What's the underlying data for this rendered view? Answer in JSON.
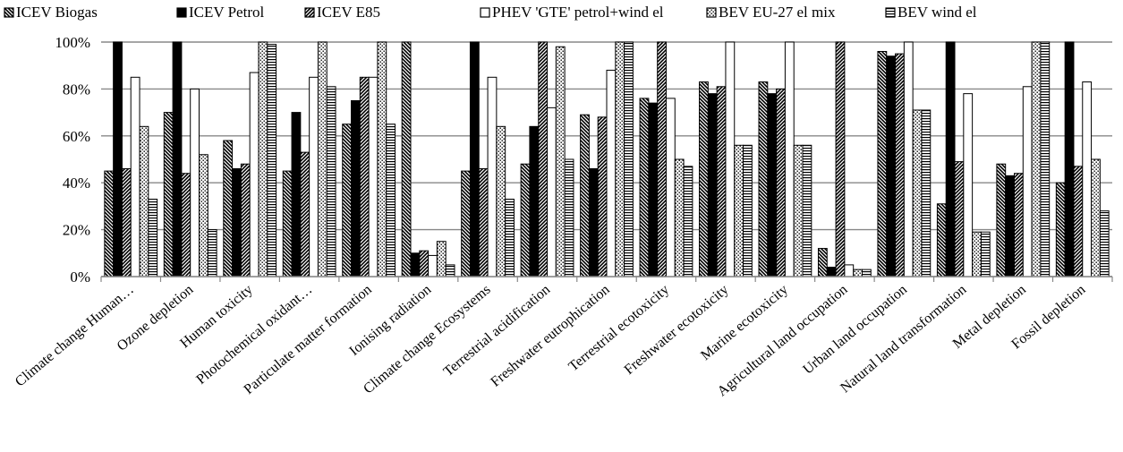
{
  "chart_data": {
    "type": "bar",
    "title": "",
    "xlabel": "",
    "ylabel": "",
    "ylim": [
      0,
      100
    ],
    "y_ticks": [
      "0%",
      "20%",
      "40%",
      "60%",
      "80%",
      "100%"
    ],
    "y_tick_values": [
      0,
      20,
      40,
      60,
      80,
      100
    ],
    "grid": "horizontal",
    "legend_position": "top",
    "categories": [
      "Climate change Human…",
      "Ozone depletion",
      "Human toxicity",
      "Photochemical oxidant…",
      "Particulate matter formation",
      "Ionising radiation",
      "Climate change Ecosystems",
      "Terrestrial acidification",
      "Freshwater eutrophication",
      "Terrestrial ecotoxicity",
      "Freshwater ecotoxicity",
      "Marine ecotoxicity",
      "Agricultural land occupation",
      "Urban land occupation",
      "Natural land transformation",
      "Metal depletion",
      "Fossil depletion"
    ],
    "series": [
      {
        "name": "ICEV Biogas",
        "pattern": "diag-down",
        "values": [
          45,
          70,
          58,
          45,
          65,
          100,
          45,
          48,
          69,
          76,
          83,
          83,
          12,
          96,
          31,
          48,
          40
        ]
      },
      {
        "name": "ICEV Petrol",
        "pattern": "solid",
        "values": [
          100,
          100,
          46,
          70,
          75,
          10,
          100,
          64,
          46,
          74,
          78,
          78,
          4,
          94,
          100,
          43,
          100
        ]
      },
      {
        "name": "ICEV E85",
        "pattern": "diag-up",
        "values": [
          46,
          44,
          48,
          53,
          85,
          11,
          46,
          100,
          68,
          100,
          81,
          80,
          100,
          95,
          49,
          44,
          47
        ]
      },
      {
        "name": "PHEV 'GTE' petrol+wind el",
        "pattern": "open",
        "values": [
          85,
          80,
          87,
          85,
          85,
          9,
          85,
          72,
          88,
          76,
          100,
          100,
          5,
          100,
          78,
          81,
          83
        ]
      },
      {
        "name": "BEV EU-27 el mix",
        "pattern": "dots",
        "values": [
          64,
          52,
          100,
          100,
          100,
          15,
          64,
          98,
          100,
          50,
          56,
          56,
          3,
          71,
          19,
          100,
          50
        ]
      },
      {
        "name": "BEV wind el",
        "pattern": "hlines",
        "values": [
          33,
          20,
          99,
          81,
          65,
          5,
          33,
          50,
          100,
          47,
          56,
          56,
          3,
          71,
          19,
          100,
          28
        ]
      }
    ]
  }
}
